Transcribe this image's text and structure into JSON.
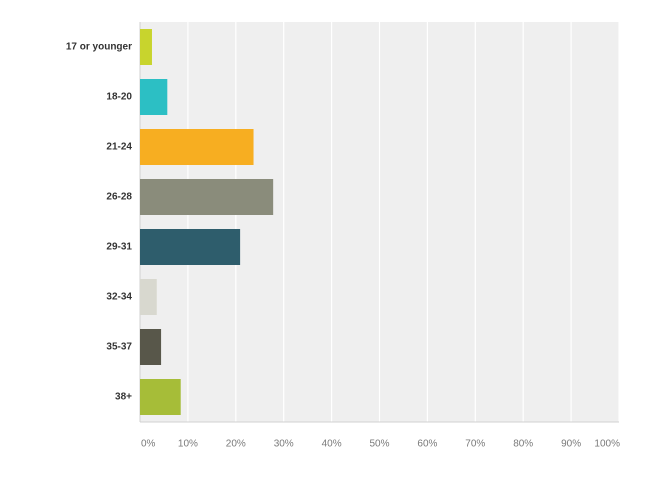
{
  "chart_data": {
    "type": "bar",
    "orientation": "horizontal",
    "categories": [
      "17 or younger",
      "18-20",
      "21-24",
      "26-28",
      "29-31",
      "32-34",
      "35-37",
      "38+"
    ],
    "values": [
      2.5,
      5.7,
      23.7,
      27.8,
      20.9,
      3.5,
      4.4,
      8.5
    ],
    "colors": [
      "#c8d42d",
      "#2cbfc4",
      "#f7ae21",
      "#8a8c7b",
      "#2e5d6c",
      "#d8d8cf",
      "#58574a",
      "#a6bd38"
    ],
    "xlim": [
      0,
      100
    ],
    "x_ticks": [
      "0%",
      "10%",
      "20%",
      "30%",
      "40%",
      "50%",
      "60%",
      "70%",
      "80%",
      "90%",
      "100%"
    ],
    "grid": true,
    "plot_background": "#efefef",
    "grid_color": "#ffffff"
  }
}
